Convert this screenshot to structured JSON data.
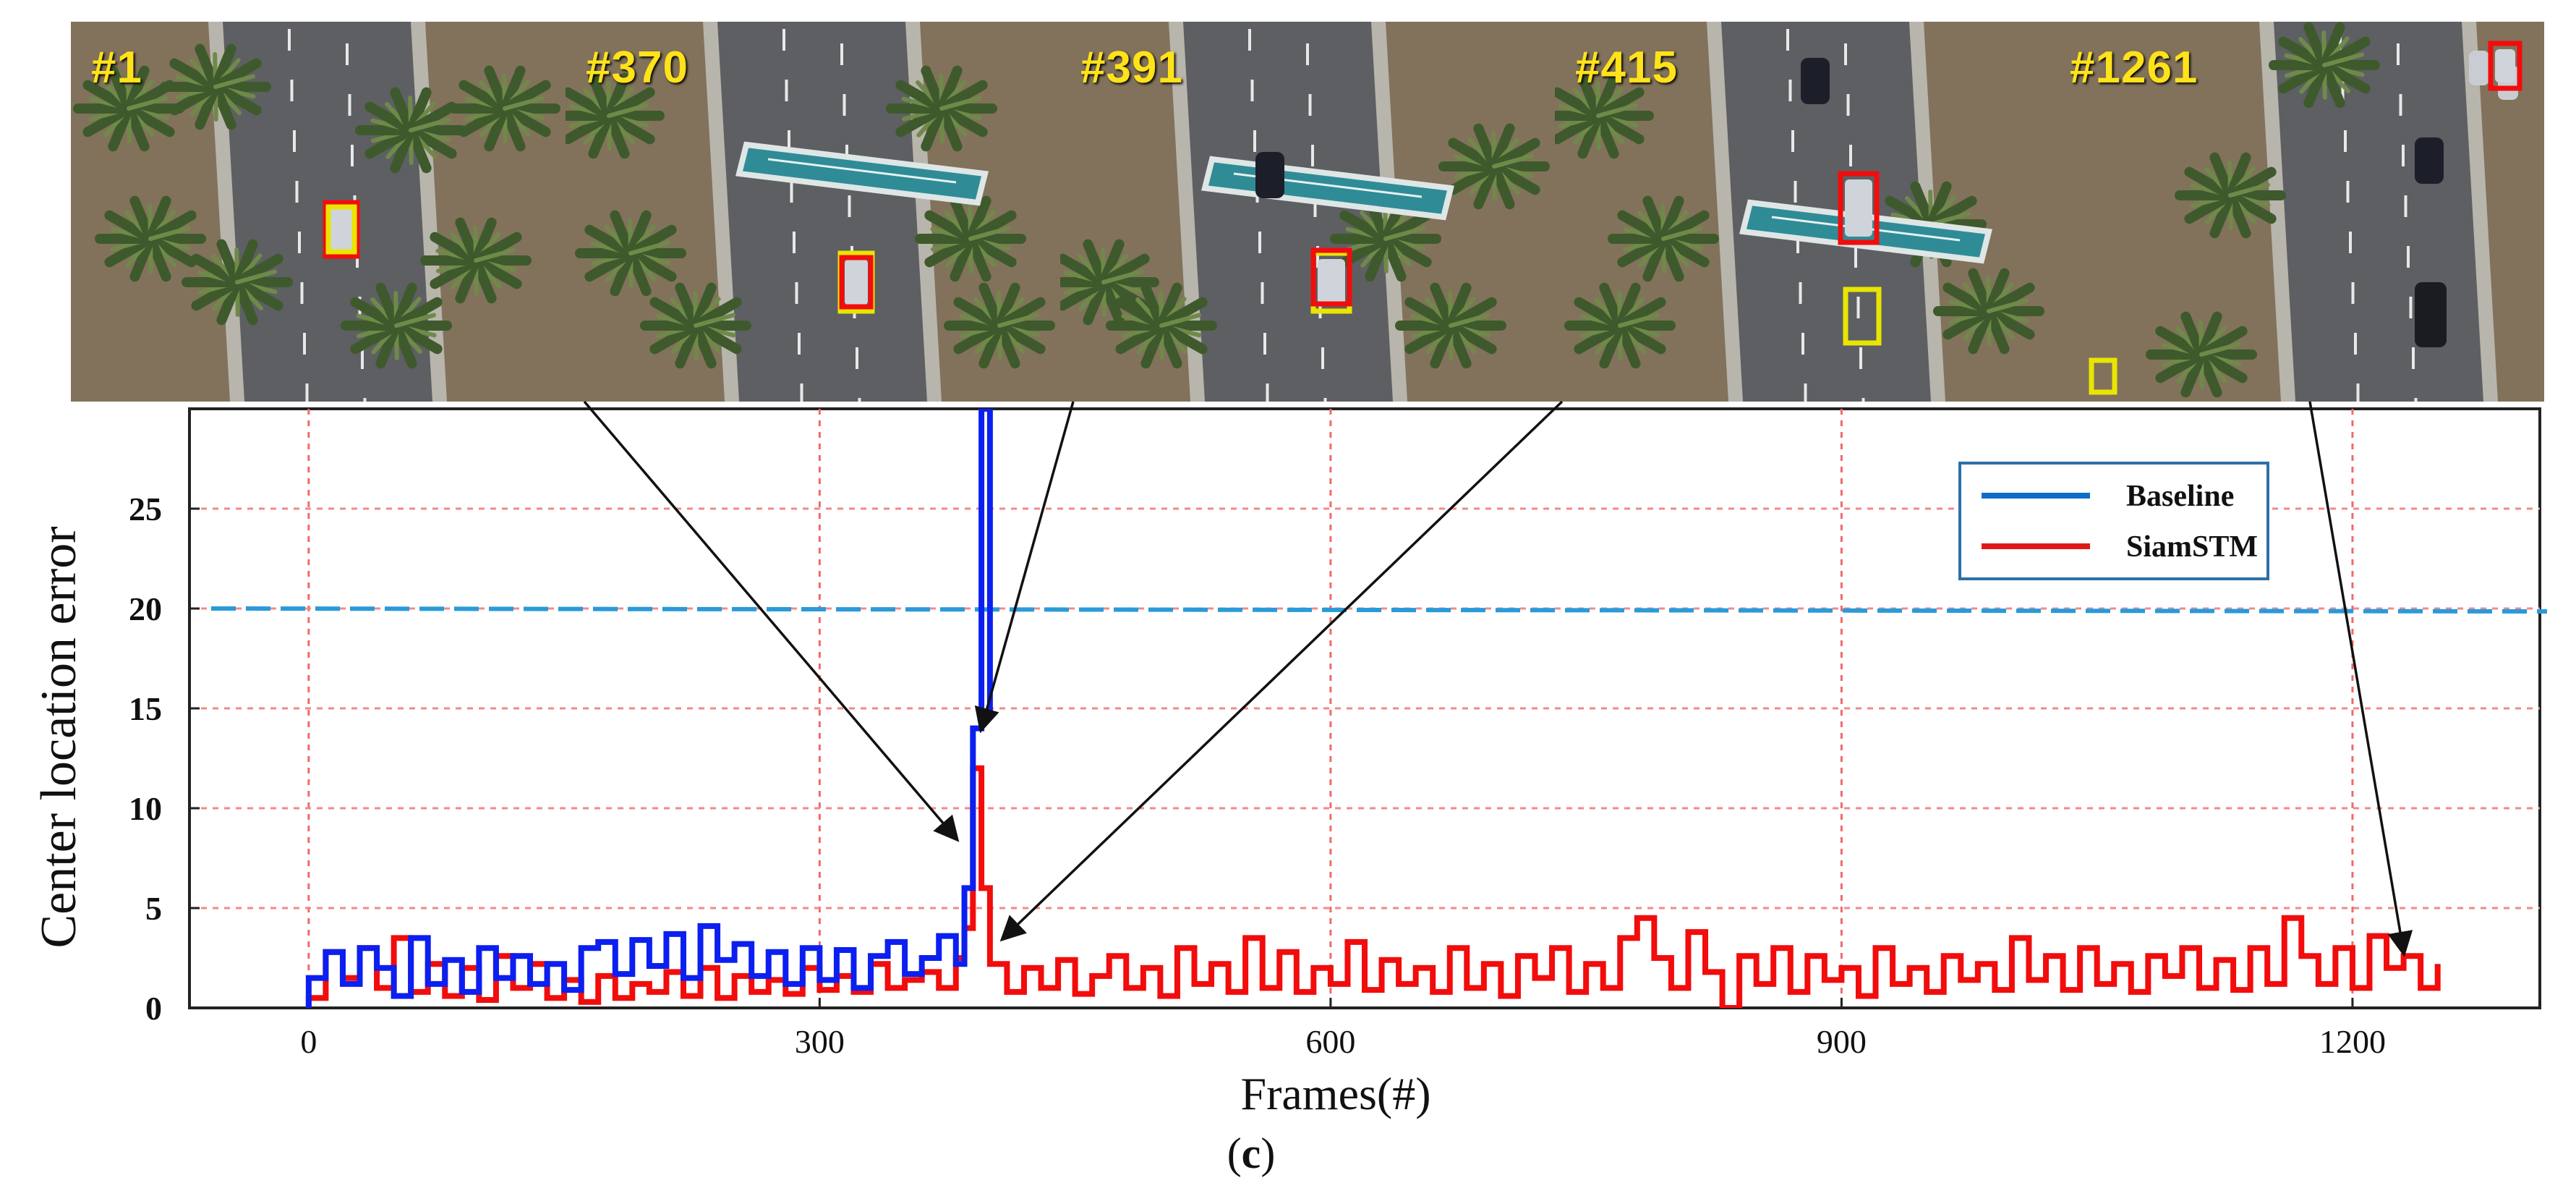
{
  "frames": [
    {
      "label": "#1"
    },
    {
      "label": "#370"
    },
    {
      "label": "#391"
    },
    {
      "label": "#415"
    },
    {
      "label": "#1261"
    }
  ],
  "colors": {
    "baseline": "#0b1ff0",
    "siamstm": "#f20c0c",
    "threshold": "#2a9ad8",
    "vgrid": "#f06a6a",
    "hgrid": "#f08a8a",
    "legend_border": "#2e6fa8",
    "ground_truth_box": "#e8e600"
  },
  "caption": {
    "open": "(",
    "letter": "c",
    "close": ")"
  },
  "chart_data": {
    "type": "line",
    "xlabel": "Frames(#)",
    "ylabel": "Center location error",
    "xlim": [
      -70,
      1310
    ],
    "ylim": [
      0,
      30
    ],
    "x_ticks": [
      0,
      300,
      600,
      900,
      1200
    ],
    "y_ticks": [
      0,
      5,
      10,
      15,
      20,
      25
    ],
    "grid": true,
    "legend_position": "top-right",
    "threshold": 20,
    "series": [
      {
        "name": "Baseline",
        "legend_color": "#0b6fc7",
        "x": [
          0,
          10,
          20,
          30,
          40,
          50,
          60,
          70,
          80,
          90,
          100,
          110,
          120,
          130,
          140,
          150,
          160,
          170,
          180,
          190,
          200,
          210,
          220,
          230,
          240,
          250,
          260,
          270,
          280,
          290,
          300,
          310,
          320,
          330,
          340,
          350,
          360,
          370,
          380,
          385,
          390,
          395,
          400
        ],
        "y": [
          1.5,
          2.8,
          1.2,
          3.0,
          2.0,
          0.6,
          3.5,
          1.2,
          2.4,
          0.8,
          3.0,
          1.5,
          2.6,
          1.2,
          2.2,
          0.9,
          3.0,
          3.3,
          1.7,
          3.4,
          2.1,
          3.7,
          1.5,
          4.1,
          2.4,
          3.2,
          1.6,
          2.8,
          1.2,
          3.0,
          1.4,
          2.9,
          1.0,
          2.6,
          3.3,
          1.7,
          2.5,
          3.6,
          2.2,
          6.0,
          14.0,
          30,
          14.5
        ]
      },
      {
        "name": "SiamSTM",
        "legend_color": "#e01818",
        "x": [
          0,
          10,
          20,
          30,
          40,
          50,
          60,
          70,
          80,
          90,
          100,
          110,
          120,
          130,
          140,
          150,
          160,
          170,
          180,
          190,
          200,
          210,
          220,
          230,
          240,
          250,
          260,
          270,
          280,
          290,
          300,
          310,
          320,
          330,
          340,
          350,
          360,
          370,
          380,
          385,
          390,
          395,
          400,
          410,
          420,
          430,
          440,
          450,
          460,
          470,
          480,
          490,
          500,
          510,
          520,
          530,
          540,
          550,
          560,
          570,
          580,
          590,
          600,
          610,
          620,
          630,
          640,
          650,
          660,
          670,
          680,
          690,
          700,
          710,
          720,
          730,
          740,
          750,
          760,
          770,
          780,
          790,
          800,
          810,
          820,
          830,
          840,
          850,
          860,
          870,
          880,
          890,
          900,
          910,
          920,
          930,
          940,
          950,
          960,
          970,
          980,
          990,
          1000,
          1010,
          1020,
          1030,
          1040,
          1050,
          1060,
          1070,
          1080,
          1090,
          1100,
          1110,
          1120,
          1130,
          1140,
          1150,
          1160,
          1170,
          1180,
          1190,
          1200,
          1210,
          1220,
          1230,
          1240,
          1250
        ],
        "y": [
          0.5,
          2.8,
          1.5,
          3.0,
          1.0,
          3.5,
          0.8,
          2.2,
          0.6,
          2.0,
          0.4,
          2.6,
          1.0,
          2.2,
          0.5,
          1.4,
          0.3,
          1.6,
          0.5,
          1.2,
          0.8,
          1.8,
          0.6,
          2.0,
          0.5,
          1.6,
          0.8,
          1.4,
          0.7,
          2.0,
          0.9,
          1.6,
          0.8,
          2.2,
          1.0,
          1.4,
          1.8,
          1.0,
          2.5,
          4.0,
          12.0,
          6.0,
          2.2,
          0.8,
          2.0,
          1.0,
          2.4,
          0.7,
          1.6,
          2.6,
          1.0,
          2.0,
          0.6,
          3.0,
          1.2,
          2.2,
          0.8,
          3.5,
          1.0,
          2.8,
          0.8,
          2.0,
          1.2,
          3.3,
          0.9,
          2.4,
          1.2,
          2.0,
          0.8,
          3.0,
          1.0,
          2.2,
          0.6,
          2.6,
          1.5,
          3.0,
          0.8,
          2.2,
          1.0,
          3.5,
          4.5,
          2.5,
          1.0,
          3.8,
          1.8,
          0.0,
          2.6,
          1.2,
          3.0,
          0.8,
          2.6,
          1.4,
          2.0,
          0.6,
          3.0,
          1.2,
          2.0,
          0.8,
          2.6,
          1.4,
          2.2,
          0.9,
          3.5,
          1.4,
          2.6,
          0.9,
          3.0,
          1.2,
          2.2,
          0.8,
          2.6,
          1.6,
          3.0,
          1.0,
          2.4,
          0.9,
          3.0,
          1.2,
          4.5,
          2.6,
          1.2,
          3.0,
          1.0,
          3.6,
          2.0,
          2.6,
          1.0,
          2.2
        ]
      }
    ]
  }
}
